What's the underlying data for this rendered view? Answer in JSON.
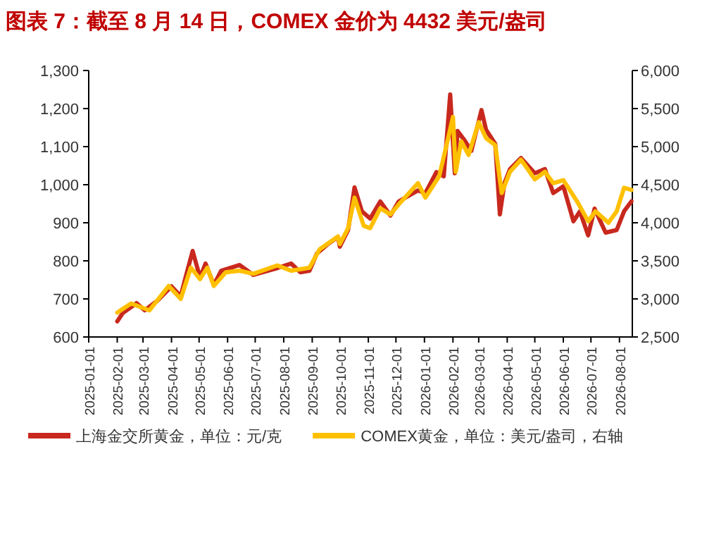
{
  "chart_data": {
    "type": "line",
    "title": "图表 7：截至 8 月 14 日，COMEX 金价为 4432 美元/盎司",
    "xlim": [
      "2025-01-01",
      "2026-08-15"
    ],
    "xticks": [
      "2025-01-01",
      "2025-02-01",
      "2025-03-01",
      "2025-04-01",
      "2025-05-01",
      "2025-06-01",
      "2025-07-01",
      "2025-08-01",
      "2025-09-01",
      "2025-10-01",
      "2025-11-01",
      "2025-12-01",
      "2026-01-01",
      "2026-02-01",
      "2026-03-01",
      "2026-04-01",
      "2026-05-01",
      "2026-06-01",
      "2026-07-01",
      "2026-08-01"
    ],
    "ylim": [
      600,
      1300
    ],
    "yticks": [
      600,
      700,
      800,
      900,
      {
        "value": 1000,
        "label": "1,000"
      },
      {
        "value": 1100,
        "label": "1,100"
      },
      {
        "value": 1200,
        "label": "1,200"
      },
      {
        "value": 1300,
        "label": "1,300"
      }
    ],
    "y2lim": [
      2500,
      6000
    ],
    "y2ticks": [
      {
        "value": 2500,
        "label": "2,500"
      },
      {
        "value": 3000,
        "label": "3,000"
      },
      {
        "value": 3500,
        "label": "3,500"
      },
      {
        "value": 4000,
        "label": "4,000"
      },
      {
        "value": 4500,
        "label": "4,500"
      },
      {
        "value": 5000,
        "label": "5,000"
      },
      {
        "value": 5500,
        "label": "5,500"
      },
      {
        "value": 6000,
        "label": "6,000"
      }
    ],
    "grid": false,
    "legend": "bottom",
    "marker": "none",
    "line_style": "solid",
    "series": [
      {
        "name": "上海金交所黄金，单位：元/克",
        "color": "#c8281e",
        "x": [
          "2025-02-01",
          "2025-02-07",
          "2025-02-22",
          "2025-03-03",
          "2025-03-17",
          "2025-04-01",
          "2025-04-11",
          "2025-04-17",
          "2025-04-24",
          "2025-05-02",
          "2025-05-08",
          "2025-05-17",
          "2025-05-25",
          "2025-06-14",
          "2025-06-29",
          "2025-07-25",
          "2025-08-09",
          "2025-08-19",
          "2025-08-29",
          "2025-09-06",
          "2025-09-18",
          "2025-09-29",
          "2025-10-01",
          "2025-10-10",
          "2025-10-17",
          "2025-10-25",
          "2025-11-03",
          "2025-11-14",
          "2025-11-25",
          "2025-12-04",
          "2025-12-25",
          "2026-01-02",
          "2026-01-14",
          "2026-01-22",
          "2026-01-29",
          "2026-02-03",
          "2026-02-06",
          "2026-02-14",
          "2026-02-21",
          "2026-03-04",
          "2026-03-09",
          "2026-03-19",
          "2026-03-24",
          "2026-03-29",
          "2026-04-04",
          "2026-04-16",
          "2026-05-01",
          "2026-05-12",
          "2026-05-21",
          "2026-06-01",
          "2026-06-12",
          "2026-06-19",
          "2026-06-28",
          "2026-07-05",
          "2026-07-17",
          "2026-07-29",
          "2026-08-06",
          "2026-08-14"
        ],
        "values": [
          641,
          663,
          689,
          670,
          696,
          733,
          707,
          763,
          826,
          756,
          793,
          737,
          774,
          789,
          763,
          781,
          793,
          770,
          774,
          819,
          844,
          863,
          837,
          881,
          993,
          930,
          911,
          956,
          919,
          956,
          985,
          978,
          1033,
          1022,
          1237,
          1030,
          1141,
          1115,
          1089,
          1196,
          1144,
          1107,
          922,
          1004,
          1041,
          1070,
          1030,
          1041,
          978,
          996,
          904,
          930,
          867,
          937,
          874,
          881,
          930,
          956
        ]
      },
      {
        "name": "COMEX黄金，单位：美元/盎司，右轴",
        "color": "#ffc000",
        "axis": "y2",
        "x": [
          "2025-02-01",
          "2025-02-16",
          "2025-03-08",
          "2025-03-29",
          "2025-04-11",
          "2025-04-22",
          "2025-05-02",
          "2025-05-10",
          "2025-05-17",
          "2025-05-30",
          "2025-06-14",
          "2025-06-29",
          "2025-07-25",
          "2025-08-09",
          "2025-08-29",
          "2025-09-09",
          "2025-09-29",
          "2025-10-01",
          "2025-10-10",
          "2025-10-17",
          "2025-10-27",
          "2025-11-03",
          "2025-11-14",
          "2025-11-25",
          "2025-12-04",
          "2025-12-25",
          "2026-01-02",
          "2026-01-17",
          "2026-01-26",
          "2026-02-01",
          "2026-02-04",
          "2026-02-10",
          "2026-02-18",
          "2026-03-01",
          "2026-03-09",
          "2026-03-19",
          "2026-03-26",
          "2026-04-04",
          "2026-04-16",
          "2026-05-01",
          "2026-05-12",
          "2026-05-21",
          "2026-06-01",
          "2026-06-16",
          "2026-06-28",
          "2026-07-06",
          "2026-07-20",
          "2026-07-29",
          "2026-08-06",
          "2026-08-14"
        ],
        "values": [
          2820,
          2940,
          2850,
          3170,
          3000,
          3410,
          3260,
          3410,
          3170,
          3350,
          3370,
          3330,
          3440,
          3370,
          3410,
          3650,
          3820,
          3720,
          3930,
          4330,
          3960,
          3930,
          4190,
          4110,
          4240,
          4520,
          4330,
          4610,
          5070,
          5390,
          4670,
          5070,
          4890,
          5320,
          5110,
          5020,
          4390,
          4670,
          4830,
          4570,
          4670,
          4520,
          4560,
          4280,
          4020,
          4150,
          4000,
          4150,
          4460,
          4432
        ]
      }
    ]
  }
}
